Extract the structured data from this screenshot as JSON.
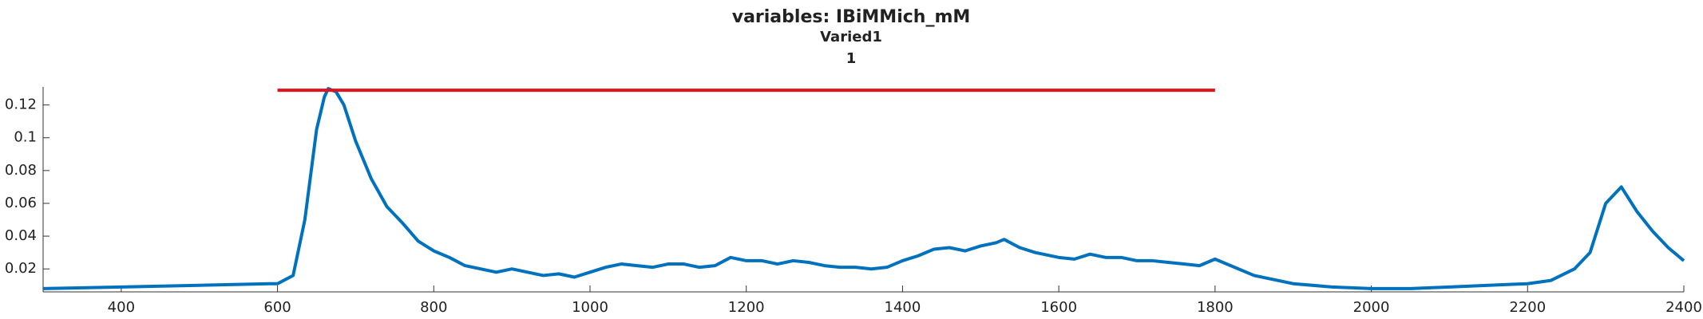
{
  "chart_data": {
    "type": "line",
    "title": "variables: IBiMMich_mM",
    "subtitle": "Varied1",
    "subtitle2": "1",
    "xlim": [
      300,
      2400
    ],
    "xticks": [
      400,
      600,
      800,
      1000,
      1200,
      1400,
      1600,
      1800,
      2000,
      2200,
      2400
    ],
    "ylim": [
      0.006,
      0.131
    ],
    "yticks": [
      0.02,
      0.04,
      0.06,
      0.08,
      0.1,
      0.12
    ],
    "series": [
      {
        "color": "#0072bd",
        "x": [
          300,
          400,
          500,
          590,
          600,
          620,
          635,
          650,
          660,
          665,
          675,
          685,
          700,
          720,
          740,
          760,
          780,
          800,
          820,
          840,
          860,
          880,
          900,
          920,
          940,
          960,
          980,
          1000,
          1020,
          1040,
          1060,
          1080,
          1100,
          1120,
          1140,
          1160,
          1180,
          1200,
          1220,
          1240,
          1260,
          1280,
          1300,
          1320,
          1340,
          1360,
          1380,
          1400,
          1420,
          1440,
          1460,
          1480,
          1500,
          1520,
          1530,
          1550,
          1570,
          1600,
          1620,
          1640,
          1660,
          1680,
          1700,
          1720,
          1740,
          1760,
          1780,
          1800,
          1820,
          1850,
          1900,
          1950,
          2000,
          2050,
          2100,
          2150,
          2200,
          2230,
          2260,
          2280,
          2300,
          2320,
          2340,
          2360,
          2380,
          2400
        ],
        "values": [
          0.008,
          0.009,
          0.01,
          0.011,
          0.011,
          0.016,
          0.05,
          0.105,
          0.125,
          0.13,
          0.128,
          0.12,
          0.098,
          0.075,
          0.058,
          0.048,
          0.037,
          0.031,
          0.027,
          0.022,
          0.02,
          0.018,
          0.02,
          0.018,
          0.016,
          0.017,
          0.015,
          0.018,
          0.021,
          0.023,
          0.022,
          0.021,
          0.023,
          0.023,
          0.021,
          0.022,
          0.027,
          0.025,
          0.025,
          0.023,
          0.025,
          0.024,
          0.022,
          0.021,
          0.021,
          0.02,
          0.021,
          0.025,
          0.028,
          0.032,
          0.033,
          0.031,
          0.034,
          0.036,
          0.038,
          0.033,
          0.03,
          0.027,
          0.026,
          0.029,
          0.027,
          0.027,
          0.025,
          0.025,
          0.024,
          0.023,
          0.022,
          0.026,
          0.022,
          0.016,
          0.011,
          0.009,
          0.008,
          0.008,
          0.009,
          0.01,
          0.011,
          0.013,
          0.02,
          0.03,
          0.06,
          0.07,
          0.055,
          0.043,
          0.033,
          0.025
        ]
      },
      {
        "color": "#e3111b",
        "x": [
          600,
          1800
        ],
        "values": [
          0.129,
          0.129
        ]
      }
    ]
  }
}
